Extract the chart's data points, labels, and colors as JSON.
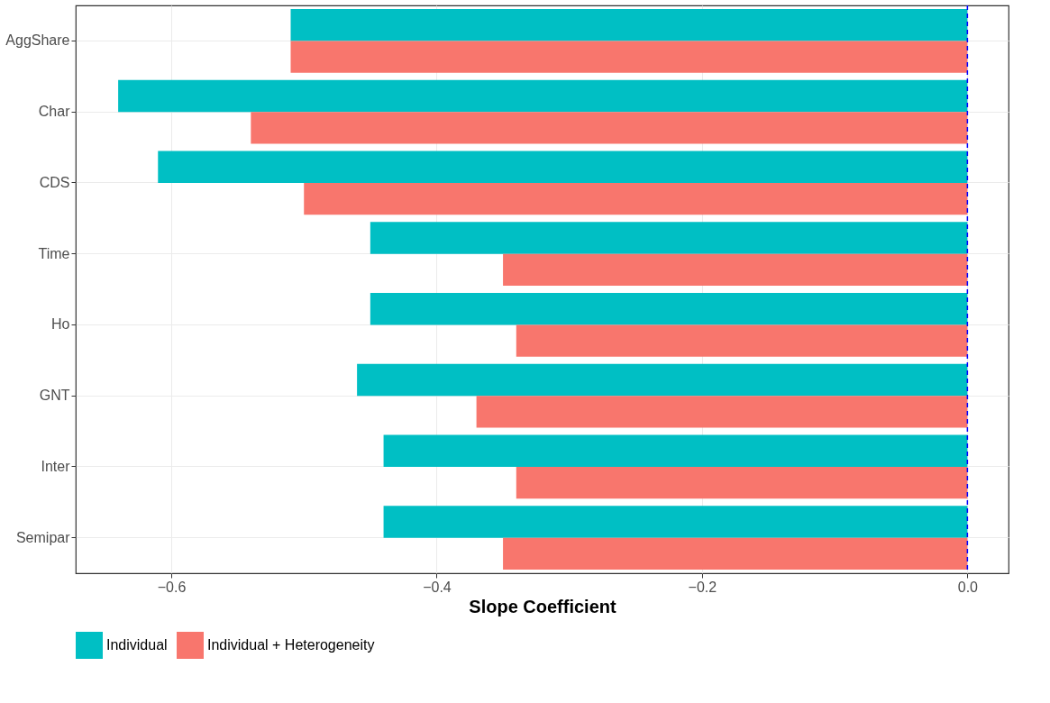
{
  "chart_data": {
    "type": "bar",
    "orientation": "horizontal",
    "xlabel": "Slope Coefficient",
    "categories": [
      "AggShare",
      "Char",
      "CDS",
      "Time",
      "Ho",
      "GNT",
      "Inter",
      "Semipar"
    ],
    "series": [
      {
        "name": "Individual",
        "color": "#00bfc4",
        "values": [
          -0.51,
          -0.64,
          -0.61,
          -0.45,
          -0.45,
          -0.46,
          -0.44,
          -0.44
        ]
      },
      {
        "name": "Individual + Heterogeneity",
        "color": "#f8766d",
        "values": [
          -0.51,
          -0.54,
          -0.5,
          -0.35,
          -0.34,
          -0.37,
          -0.34,
          -0.35
        ]
      }
    ],
    "xlim": [
      -0.672,
      0.031
    ],
    "xticks": [
      {
        "value": -0.6,
        "label": "−0.6"
      },
      {
        "value": -0.4,
        "label": "−0.4"
      },
      {
        "value": -0.2,
        "label": "−0.2"
      },
      {
        "value": 0.0,
        "label": "0.0"
      }
    ],
    "ref_lines": [
      {
        "axis": "x",
        "value": 0,
        "color": "#0000ff",
        "line_style": "dashed"
      }
    ],
    "grid": true,
    "legend": "bottom"
  }
}
